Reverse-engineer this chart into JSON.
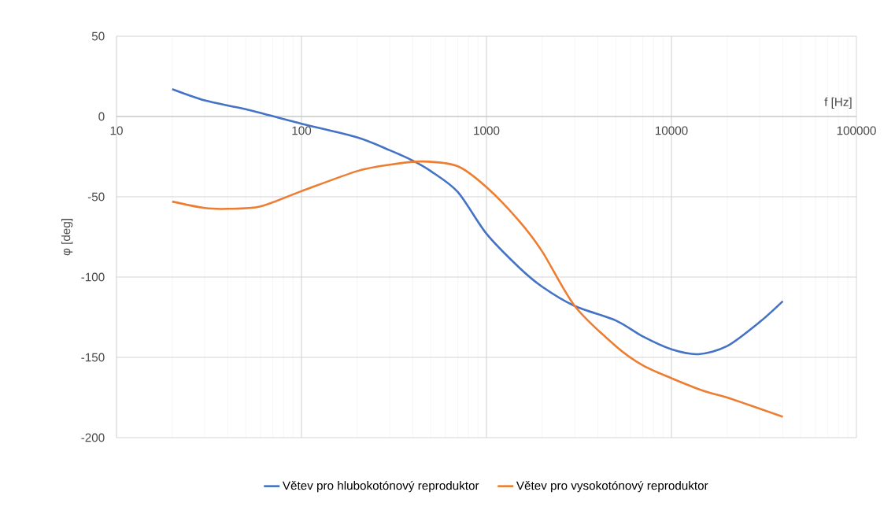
{
  "chart_data": {
    "type": "line",
    "xlabel": "f [Hz]",
    "ylabel": "φ [deg]",
    "log": "x",
    "grid": true,
    "legend": "bottom",
    "marker": "none",
    "line_style": "solid",
    "xlim": [
      10,
      100000
    ],
    "xticks": [
      10,
      100,
      1000,
      10000,
      100000
    ],
    "ylim": [
      -200,
      50
    ],
    "yticks": [
      -200,
      -150,
      -100,
      -50,
      0,
      50
    ],
    "series": [
      {
        "name": "Větev pro hlubokotónový reproduktor",
        "color": "#4472c4",
        "x": [
          20,
          30,
          50,
          100,
          200,
          300,
          400,
          500,
          700,
          1000,
          1500,
          2000,
          3000,
          5000,
          7000,
          10000,
          14000,
          20000,
          30000,
          40000
        ],
        "values": [
          17,
          10,
          4.5,
          -4.5,
          -13,
          -21,
          -27.5,
          -34,
          -47,
          -73,
          -94,
          -106,
          -118,
          -127,
          -137,
          -145,
          -148,
          -143,
          -128,
          -115
        ]
      },
      {
        "name": "Větev pro vysokotónový reproduktor",
        "color": "#ed7d31",
        "x": [
          20,
          30,
          40,
          60,
          100,
          200,
          300,
          450,
          700,
          1000,
          1500,
          2000,
          3000,
          5000,
          7000,
          10000,
          15000,
          20000,
          40000
        ],
        "values": [
          -53,
          -57,
          -57.5,
          -56,
          -46.5,
          -34,
          -30,
          -28,
          -31,
          -44,
          -65,
          -84,
          -118,
          -143,
          -155,
          -163,
          -171,
          -175,
          -187
        ]
      }
    ]
  }
}
